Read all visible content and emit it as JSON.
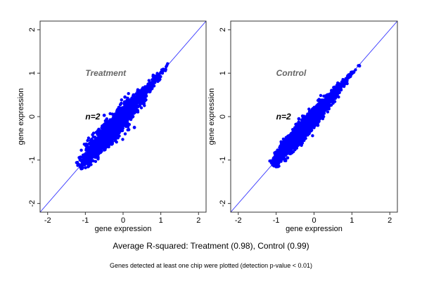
{
  "chart_data": [
    {
      "type": "scatter",
      "title": "Treatment",
      "annotation": "n=2",
      "xlabel": "gene expression",
      "ylabel": "gene expression",
      "xlim": [
        -2.2,
        2.2
      ],
      "ylim": [
        -2.2,
        2.2
      ],
      "xticks": [
        "-2",
        "-1",
        "0",
        "1",
        "2"
      ],
      "yticks": [
        "-2",
        "-1",
        "0",
        "1",
        "2"
      ],
      "grid": false,
      "reference_line": {
        "slope": 1,
        "intercept": 0
      },
      "point_color": "#0000ff",
      "line_color": "#3333ff",
      "cloud": {
        "x_range": [
          -1.15,
          1.2
        ],
        "spread": 0.09,
        "count": 2600
      },
      "outliers": [
        [
          0.05,
          0.45
        ],
        [
          -0.5,
          0.03
        ],
        [
          0.3,
          -0.25
        ],
        [
          -0.45,
          -0.12
        ],
        [
          0.15,
          -0.3
        ],
        [
          -0.85,
          -1.0
        ],
        [
          0.05,
          0.2
        ]
      ]
    },
    {
      "type": "scatter",
      "title": "Control",
      "annotation": "n=2",
      "xlabel": "gene expression",
      "ylabel": "gene expression",
      "xlim": [
        -2.2,
        2.2
      ],
      "ylim": [
        -2.2,
        2.2
      ],
      "xticks": [
        "-2",
        "-1",
        "0",
        "1",
        "2"
      ],
      "yticks": [
        "-2",
        "-1",
        "0",
        "1",
        "2"
      ],
      "grid": false,
      "reference_line": {
        "slope": 1,
        "intercept": 0
      },
      "point_color": "#0000ff",
      "line_color": "#3333ff",
      "cloud": {
        "x_range": [
          -1.1,
          1.2
        ],
        "spread": 0.07,
        "count": 2600
      },
      "outliers": [
        [
          -0.4,
          -0.05
        ],
        [
          0.1,
          -0.2
        ],
        [
          0.35,
          0.5
        ],
        [
          -0.7,
          -0.95
        ]
      ]
    }
  ],
  "footer": {
    "r_squared": "Average R-squared: Treatment (0.98), Control (0.99)",
    "note": "Genes detected at least one chip were plotted (detection p-value < 0.01)"
  }
}
